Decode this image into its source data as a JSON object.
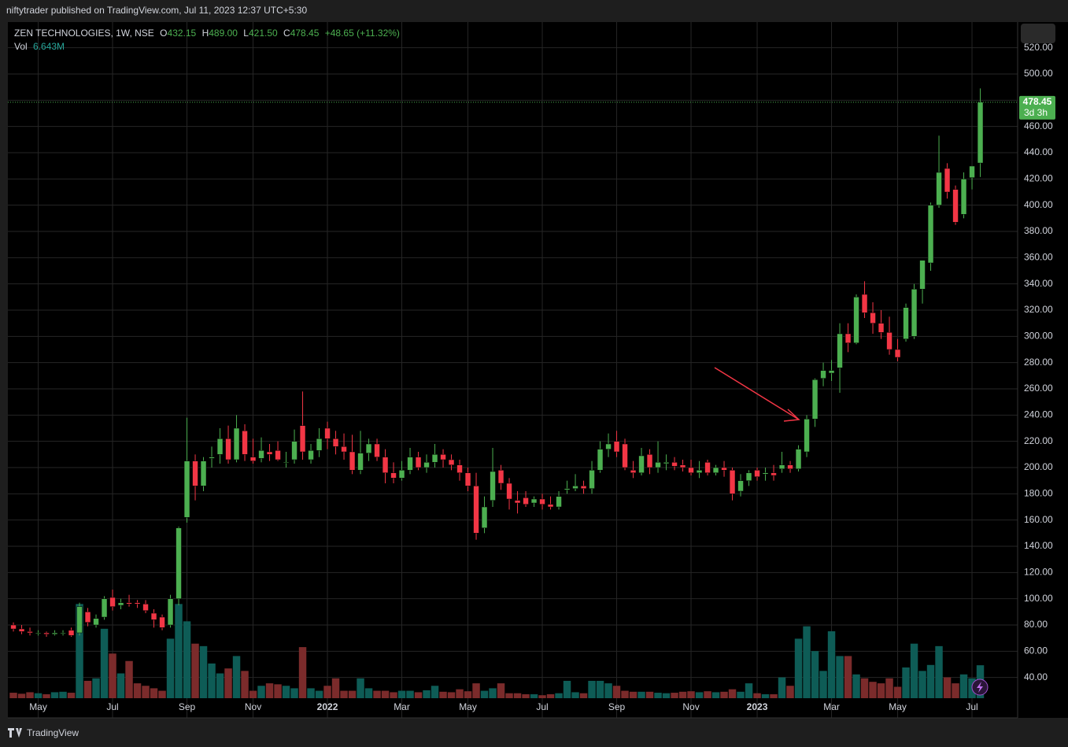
{
  "chart_data": {
    "type": "candlestick",
    "publisher_line": "niftytrader published on TradingView.com, Jul 11, 2023 12:37 UTC+5:30",
    "symbol": "ZEN TECHNOLOGIES, 1W, NSE",
    "ohlc_letters": [
      "O",
      "H",
      "L",
      "C"
    ],
    "last_bar_labels": [
      "432.15",
      "489.00",
      "421.50",
      "478.45"
    ],
    "change_label": "+48.65 (+11.32%)",
    "countdown": "3d 3h",
    "footer": "TradingView",
    "up_color": "#4caf50",
    "down_color": "#f23645",
    "grid": true,
    "xlim": [
      -0.67,
      121.52
    ],
    "ylim": [
      24.2,
      539.6
    ],
    "xticks": [
      {
        "value": 3,
        "label": "May"
      },
      {
        "value": 12,
        "label": "Jul"
      },
      {
        "value": 21,
        "label": "Sep"
      },
      {
        "value": 29,
        "label": "Nov"
      },
      {
        "value": 38,
        "label": "2022"
      },
      {
        "value": 47,
        "label": "Mar"
      },
      {
        "value": 55,
        "label": "May"
      },
      {
        "value": 64,
        "label": "Jul"
      },
      {
        "value": 73,
        "label": "Sep"
      },
      {
        "value": 82,
        "label": "Nov"
      },
      {
        "value": 90,
        "label": "2023"
      },
      {
        "value": 99,
        "label": "Mar"
      },
      {
        "value": 107,
        "label": "May"
      },
      {
        "value": 116,
        "label": "Jul"
      }
    ],
    "yticks": [
      {
        "value": 40,
        "label": "40.00"
      },
      {
        "value": 60,
        "label": "60.00"
      },
      {
        "value": 80,
        "label": "80.00"
      },
      {
        "value": 100,
        "label": "100.00"
      },
      {
        "value": 120,
        "label": "120.00"
      },
      {
        "value": 140,
        "label": "140.00"
      },
      {
        "value": 160,
        "label": "160.00"
      },
      {
        "value": 180,
        "label": "180.00"
      },
      {
        "value": 200,
        "label": "200.00"
      },
      {
        "value": 220,
        "label": "220.00"
      },
      {
        "value": 240,
        "label": "240.00"
      },
      {
        "value": 260,
        "label": "260.00"
      },
      {
        "value": 280,
        "label": "280.00"
      },
      {
        "value": 300,
        "label": "300.00"
      },
      {
        "value": 320,
        "label": "320.00"
      },
      {
        "value": 340,
        "label": "340.00"
      },
      {
        "value": 360,
        "label": "360.00"
      },
      {
        "value": 380,
        "label": "380.00"
      },
      {
        "value": 400,
        "label": "400.00"
      },
      {
        "value": 420,
        "label": "420.00"
      },
      {
        "value": 440,
        "label": "440.00"
      },
      {
        "value": 460,
        "label": "460.00"
      },
      {
        "value": 480,
        "label": "480.00"
      },
      {
        "value": 500,
        "label": "500.00"
      },
      {
        "value": 520,
        "label": "520.00"
      }
    ],
    "series": [
      {
        "name": "ZEN TECHNOLOGIES",
        "ohlc": [
          [
            80,
            82,
            75,
            77
          ],
          [
            77,
            80,
            73,
            75
          ],
          [
            75,
            78,
            72,
            74
          ],
          [
            73.5,
            76,
            72,
            74
          ],
          [
            74,
            75,
            71,
            73
          ],
          [
            73,
            76,
            72,
            74
          ],
          [
            74,
            76,
            72,
            74
          ],
          [
            76,
            78,
            71,
            72
          ],
          [
            74,
            97,
            72,
            94
          ],
          [
            90,
            93,
            79,
            82
          ],
          [
            80,
            88,
            78,
            85
          ],
          [
            86,
            102,
            84,
            100
          ],
          [
            101,
            107,
            91,
            94
          ],
          [
            95,
            100,
            92,
            97
          ],
          [
            97,
            103,
            94,
            96
          ],
          [
            97,
            99,
            93,
            96
          ],
          [
            96,
            99,
            89,
            91
          ],
          [
            89,
            92,
            78,
            84
          ],
          [
            86,
            88,
            76,
            78
          ],
          [
            80,
            103,
            78,
            100
          ],
          [
            100,
            155,
            95,
            154
          ],
          [
            162,
            238,
            158,
            205
          ],
          [
            205,
            210,
            175,
            186
          ],
          [
            186,
            208,
            182,
            205
          ],
          [
            207,
            216,
            200,
            208
          ],
          [
            210,
            230,
            203,
            222
          ],
          [
            222,
            232,
            203,
            206
          ],
          [
            206,
            240,
            204,
            230
          ],
          [
            228,
            233,
            205,
            210
          ],
          [
            208,
            222,
            203,
            205
          ],
          [
            207,
            223,
            204,
            213
          ],
          [
            212,
            218,
            205,
            210
          ],
          [
            213,
            220,
            205,
            206
          ],
          [
            204,
            212,
            200,
            204
          ],
          [
            206,
            229,
            203,
            220
          ],
          [
            232,
            258,
            206,
            212
          ],
          [
            206,
            218,
            203,
            213
          ],
          [
            213,
            230,
            208,
            222
          ],
          [
            230,
            235,
            214,
            222
          ],
          [
            222,
            228,
            210,
            216
          ],
          [
            216,
            226,
            206,
            212
          ],
          [
            212,
            225,
            195,
            198
          ],
          [
            198,
            228,
            195,
            211
          ],
          [
            211,
            222,
            205,
            218
          ],
          [
            218,
            222,
            205,
            208
          ],
          [
            208,
            214,
            188,
            196
          ],
          [
            196,
            204,
            188,
            192
          ],
          [
            192,
            205,
            190,
            198
          ],
          [
            198,
            215,
            195,
            208
          ],
          [
            208,
            212,
            198,
            200
          ],
          [
            200,
            210,
            196,
            204
          ],
          [
            204,
            218,
            200,
            210
          ],
          [
            210,
            214,
            200,
            206
          ],
          [
            206,
            210,
            198,
            202
          ],
          [
            202,
            206,
            190,
            196
          ],
          [
            196,
            200,
            182,
            186
          ],
          [
            186,
            196,
            145,
            150
          ],
          [
            154,
            178,
            150,
            170
          ],
          [
            175,
            215,
            170,
            197
          ],
          [
            198,
            202,
            183,
            188
          ],
          [
            188,
            192,
            168,
            176
          ],
          [
            175,
            182,
            165,
            173
          ],
          [
            177,
            182,
            170,
            172
          ],
          [
            173,
            178,
            170,
            176
          ],
          [
            176,
            180,
            168,
            172
          ],
          [
            172,
            178,
            168,
            170
          ],
          [
            170,
            182,
            168,
            178
          ],
          [
            183,
            190,
            180,
            184
          ],
          [
            184,
            195,
            182,
            186
          ],
          [
            186,
            190,
            180,
            184
          ],
          [
            184,
            205,
            180,
            198
          ],
          [
            198,
            220,
            196,
            214
          ],
          [
            214,
            226,
            208,
            218
          ],
          [
            220,
            228,
            208,
            212
          ],
          [
            218,
            222,
            198,
            200
          ],
          [
            198,
            205,
            192,
            196
          ],
          [
            196,
            215,
            194,
            209
          ],
          [
            210,
            214,
            195,
            200
          ],
          [
            200,
            220,
            196,
            204
          ],
          [
            203,
            210,
            198,
            204
          ],
          [
            204,
            208,
            198,
            201
          ],
          [
            202,
            206,
            197,
            200
          ],
          [
            200,
            206,
            194,
            196
          ],
          [
            196,
            205,
            192,
            198
          ],
          [
            204,
            206,
            194,
            196
          ],
          [
            196,
            202,
            194,
            200
          ],
          [
            200,
            205,
            193,
            198
          ],
          [
            198,
            200,
            175,
            180
          ],
          [
            182,
            195,
            178,
            190
          ],
          [
            190,
            198,
            186,
            196
          ],
          [
            198,
            200,
            190,
            193
          ],
          [
            195,
            200,
            190,
            196
          ],
          [
            196,
            202,
            190,
            194
          ],
          [
            199,
            212,
            196,
            202
          ],
          [
            202,
            205,
            196,
            199
          ],
          [
            199,
            217,
            197,
            214
          ],
          [
            212,
            240,
            208,
            237
          ],
          [
            237,
            268,
            231,
            267
          ],
          [
            268,
            280,
            262,
            274
          ],
          [
            272,
            282,
            266,
            274
          ],
          [
            276,
            310,
            257,
            302
          ],
          [
            302,
            310,
            288,
            295
          ],
          [
            295,
            332,
            294,
            330
          ],
          [
            332,
            342,
            314,
            318
          ],
          [
            318,
            326,
            302,
            310
          ],
          [
            310,
            320,
            298,
            303
          ],
          [
            303,
            315,
            286,
            290
          ],
          [
            290,
            298,
            281,
            284
          ],
          [
            298,
            325,
            296,
            322
          ],
          [
            300,
            340,
            298,
            336
          ],
          [
            336,
            358,
            325,
            358
          ],
          [
            356,
            402,
            350,
            400
          ],
          [
            400,
            453,
            398,
            425
          ],
          [
            428,
            432,
            405,
            410
          ],
          [
            412,
            415,
            385,
            387
          ],
          [
            393,
            425,
            390,
            420
          ],
          [
            421,
            430,
            412,
            429.8
          ],
          [
            432.15,
            489,
            421.5,
            478.45
          ]
        ]
      }
    ],
    "volume": {
      "name": "Vol",
      "up_color": "#0e5c56",
      "down_color": "#7b2b2b",
      "values_unit_note_label": "6.643M",
      "values": [
        1.1,
        0.9,
        1.2,
        1.0,
        0.8,
        1.2,
        1.3,
        1.1,
        19,
        3.5,
        4,
        14,
        9,
        5,
        7.5,
        3,
        2.5,
        2,
        1.5,
        12,
        19,
        15.5,
        11,
        10.5,
        7,
        5,
        6,
        8.5,
        5.5,
        1.5,
        2.5,
        3,
        2.8,
        2.5,
        2,
        10.3,
        2,
        1.5,
        2.5,
        4,
        1.5,
        1.5,
        4,
        2,
        1.5,
        1.5,
        1.2,
        1.5,
        1.5,
        1.2,
        1.6,
        2.5,
        1.3,
        1.2,
        1.8,
        1.4,
        3,
        1.5,
        2,
        3,
        1,
        1,
        0.8,
        0.8,
        0.6,
        0.8,
        1,
        3.5,
        1.2,
        1,
        3.5,
        3.5,
        3,
        2.5,
        1.5,
        1.3,
        1.3,
        1.3,
        1.1,
        1,
        1.1,
        1.3,
        1.4,
        1.2,
        1.4,
        1.2,
        1.3,
        1.8,
        1.3,
        3,
        1,
        0.8,
        0.8,
        4.2,
        2.5,
        12,
        14.5,
        9.5,
        5.5,
        13.5,
        8.5,
        8.5,
        4.8,
        4,
        3.3,
        3,
        4,
        2.3,
        6.2,
        11,
        5.5,
        6.7,
        10.5,
        4.2,
        3,
        4.8,
        4,
        6.643
      ]
    }
  }
}
